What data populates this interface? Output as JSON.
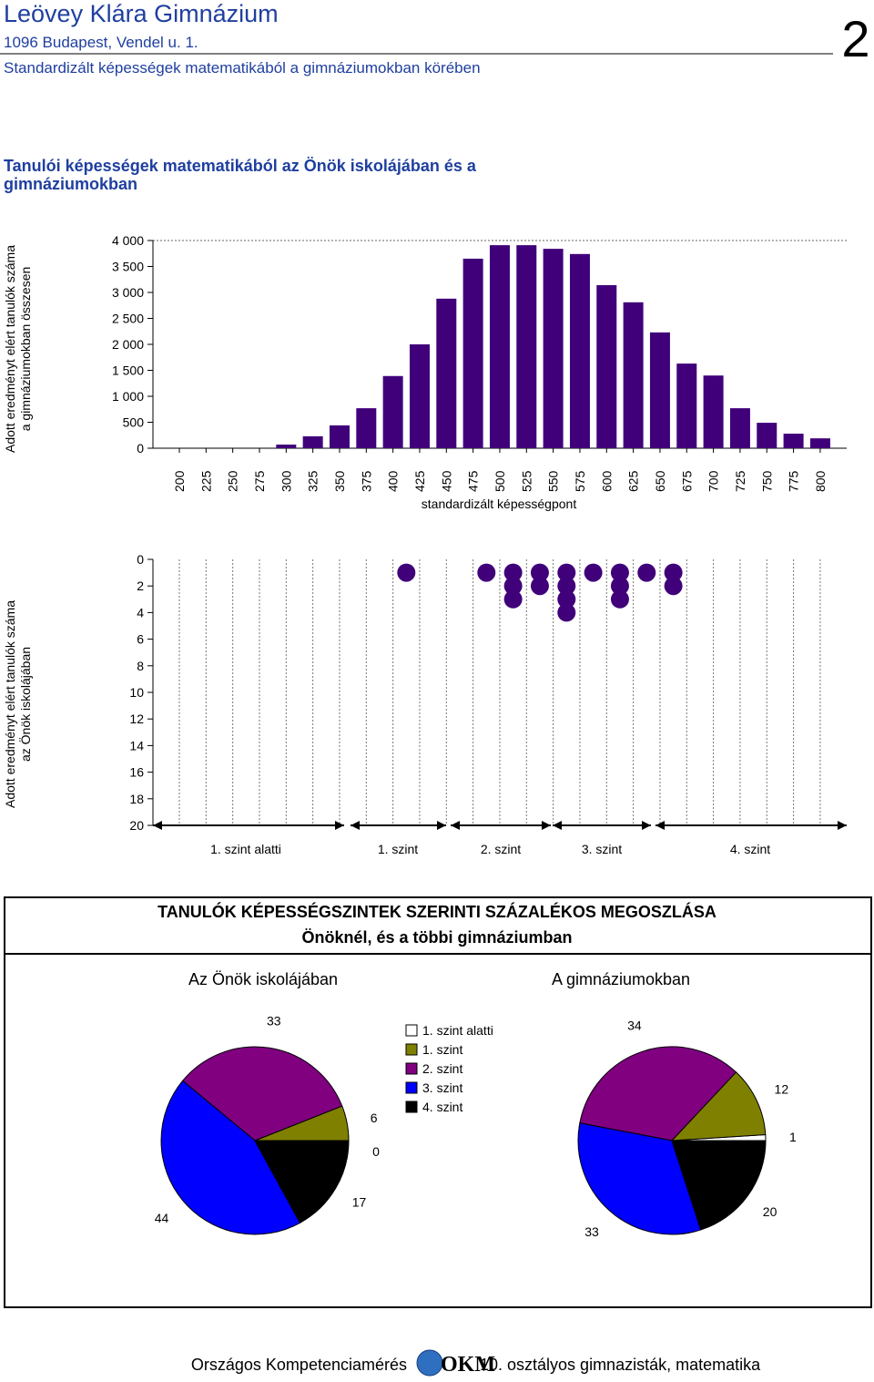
{
  "header": {
    "school": "Leövey Klára Gimnázium",
    "address": "1096 Budapest, Vendel u. 1.",
    "subtitle": "Standardizált képességek matematikából a gimnáziumokban körében",
    "page_number": "2"
  },
  "section_title": [
    "Tanulói képességek matematikából az Önök iskolájában és a",
    "gimnáziumokban"
  ],
  "pie_section": {
    "title": [
      "TANULÓK KÉPESSÉGSZINTEK SZERINTI SZÁZALÉKOS MEGOSZLÁSA",
      "Önöknél, és a többi gimnáziumban"
    ]
  },
  "footer": {
    "left": "Országos Kompetenciamérés",
    "logo": "OKM",
    "right": "10. osztályos gimnazisták, matematika"
  },
  "chart_data": [
    {
      "type": "bar",
      "ylabel": [
        "Adott eredményt elért tanulók száma",
        "a gimnáziumokban összesen"
      ],
      "xlabel": "standardizált képességpont",
      "categories": [
        200,
        225,
        250,
        275,
        300,
        325,
        350,
        375,
        400,
        425,
        450,
        475,
        500,
        525,
        550,
        575,
        600,
        625,
        650,
        675,
        700,
        725,
        750,
        775,
        800
      ],
      "values": [
        0,
        0,
        0,
        0,
        70,
        230,
        440,
        770,
        1390,
        2000,
        2880,
        3650,
        3910,
        3910,
        3840,
        3740,
        3140,
        2810,
        2230,
        1630,
        1400,
        770,
        490,
        280,
        190
      ],
      "color": "#40007a",
      "ylim": [
        0,
        4000
      ],
      "yticks": [
        0,
        500,
        {
          "value": 1000,
          "label": "1 000"
        },
        {
          "value": 1500,
          "label": "1 500"
        },
        {
          "value": 2000,
          "label": "2 000"
        },
        {
          "value": 2500,
          "label": "2 500"
        },
        {
          "value": 3000,
          "label": "3 000"
        },
        {
          "value": 3500,
          "label": "3 500"
        },
        {
          "value": 4000,
          "label": "4 000"
        }
      ]
    },
    {
      "type": "dot",
      "ylabel": [
        "Adott eredményt elért tanulók száma",
        "az Önök iskolájában"
      ],
      "categories": [
        null,
        null,
        null,
        null,
        null,
        null,
        null,
        null,
        null,
        null,
        null,
        null,
        null,
        null,
        null,
        null,
        null,
        null,
        null,
        null,
        null,
        null,
        null,
        null
      ],
      "values": [
        0,
        0,
        0,
        0,
        0,
        0,
        0,
        0,
        1,
        0,
        0,
        1,
        3,
        2,
        4,
        1,
        3,
        1,
        2,
        0,
        0,
        0,
        0,
        0
      ],
      "color": "#40007a",
      "ylim": [
        0,
        20
      ],
      "y_inverted": true,
      "yticks": [
        0,
        2,
        4,
        6,
        8,
        10,
        12,
        14,
        16,
        18,
        20
      ],
      "levels": [
        "1. szint alatti",
        "1. szint",
        "2. szint",
        "3. szint",
        "4. szint"
      ]
    },
    {
      "type": "pie",
      "title": "Az Önök iskolájában",
      "categories": [
        "1. szint alatti",
        "1. szint",
        "2. szint",
        "3. szint",
        "4. szint"
      ],
      "values": [
        0,
        6,
        33,
        44,
        17
      ],
      "colors": [
        "#ffffff",
        "#808000",
        "#800080",
        "#0000ff",
        "#000000"
      ]
    },
    {
      "type": "pie",
      "title": "A gimnáziumokban",
      "categories": [
        "1. szint alatti",
        "1. szint",
        "2. szint",
        "3. szint",
        "4. szint"
      ],
      "values": [
        1,
        12,
        34,
        33,
        20
      ],
      "colors": [
        "#ffffff",
        "#808000",
        "#800080",
        "#0000ff",
        "#000000"
      ]
    }
  ]
}
